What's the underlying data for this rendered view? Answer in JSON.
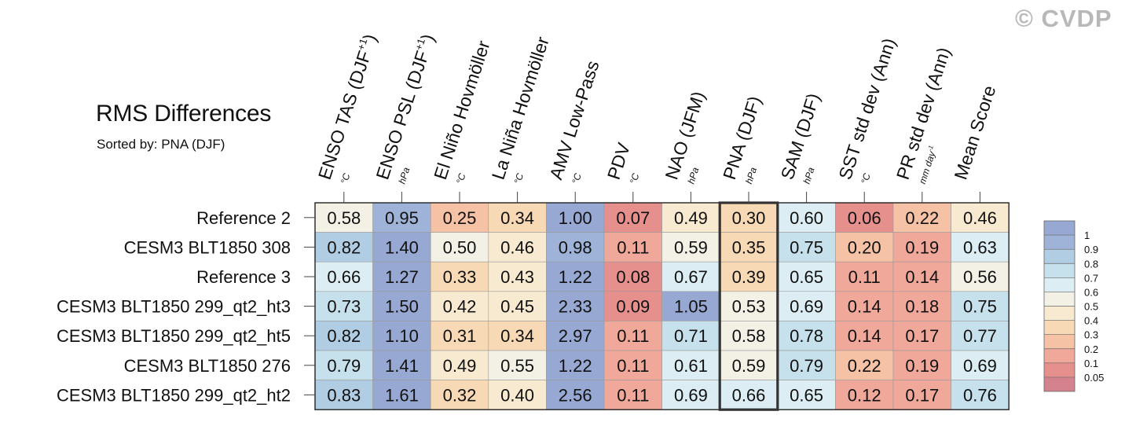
{
  "header": {
    "title": "RMS Differences",
    "subtitle": "Sorted by: PNA (DJF)",
    "watermark": "© CVDP"
  },
  "chart_data": {
    "type": "heatmap",
    "title": "RMS Differences",
    "subtitle": "Sorted by: PNA (DJF)",
    "highlighted_column": "PNA (DJF)",
    "columns": [
      {
        "label": "ENSO TAS (DJF",
        "sup": "+1",
        "tail": ")",
        "unit": "°C"
      },
      {
        "label": "ENSO PSL (DJF",
        "sup": "+1",
        "tail": ")",
        "unit": "hPa"
      },
      {
        "label": "El Niño Hovmöller",
        "sup": "",
        "tail": "",
        "unit": "°C"
      },
      {
        "label": "La Niña Hovmöller",
        "sup": "",
        "tail": "",
        "unit": "°C"
      },
      {
        "label": "AMV Low-Pass",
        "sup": "",
        "tail": "",
        "unit": "°C"
      },
      {
        "label": "PDV",
        "sup": "",
        "tail": "",
        "unit": "°C"
      },
      {
        "label": "NAO (JFM)",
        "sup": "",
        "tail": "",
        "unit": "hPa"
      },
      {
        "label": "PNA (DJF)",
        "sup": "",
        "tail": "",
        "unit": "hPa"
      },
      {
        "label": "SAM (DJF)",
        "sup": "",
        "tail": "",
        "unit": "hPa"
      },
      {
        "label": "SST std dev (Ann)",
        "sup": "",
        "tail": "",
        "unit": "°C"
      },
      {
        "label": "PR std dev (Ann)",
        "sup": "",
        "tail": "",
        "unit": "mm day",
        "unit_sup": "-1"
      },
      {
        "label": "Mean Score",
        "sup": "",
        "tail": "",
        "unit": ""
      }
    ],
    "rows": [
      "Reference 2",
      "CESM3 BLT1850 308",
      "Reference 3",
      "CESM3 BLT1850 299_qt2_ht3",
      "CESM3 BLT1850 299_qt2_ht5",
      "CESM3 BLT1850 276",
      "CESM3 BLT1850 299_qt2_ht2"
    ],
    "values": [
      [
        0.58,
        0.95,
        0.25,
        0.34,
        1.0,
        0.07,
        0.49,
        0.3,
        0.6,
        0.06,
        0.22,
        0.46
      ],
      [
        0.82,
        1.4,
        0.5,
        0.46,
        0.98,
        0.11,
        0.59,
        0.35,
        0.75,
        0.2,
        0.19,
        0.63
      ],
      [
        0.66,
        1.27,
        0.33,
        0.43,
        1.22,
        0.08,
        0.67,
        0.39,
        0.65,
        0.11,
        0.14,
        0.56
      ],
      [
        0.73,
        1.5,
        0.42,
        0.45,
        2.33,
        0.09,
        1.05,
        0.53,
        0.69,
        0.14,
        0.18,
        0.75
      ],
      [
        0.82,
        1.1,
        0.31,
        0.34,
        2.97,
        0.11,
        0.71,
        0.58,
        0.78,
        0.14,
        0.17,
        0.77
      ],
      [
        0.79,
        1.41,
        0.49,
        0.55,
        1.22,
        0.11,
        0.61,
        0.59,
        0.79,
        0.22,
        0.19,
        0.69
      ],
      [
        0.83,
        1.61,
        0.32,
        0.4,
        2.56,
        0.11,
        0.69,
        0.66,
        0.65,
        0.12,
        0.17,
        0.76
      ]
    ],
    "value_labels": [
      [
        "0.58",
        "0.95",
        "0.25",
        "0.34",
        "1.00",
        "0.07",
        "0.49",
        "0.30",
        "0.60",
        "0.06",
        "0.22",
        "0.46"
      ],
      [
        "0.82",
        "1.40",
        "0.50",
        "0.46",
        "0.98",
        "0.11",
        "0.59",
        "0.35",
        "0.75",
        "0.20",
        "0.19",
        "0.63"
      ],
      [
        "0.66",
        "1.27",
        "0.33",
        "0.43",
        "1.22",
        "0.08",
        "0.67",
        "0.39",
        "0.65",
        "0.11",
        "0.14",
        "0.56"
      ],
      [
        "0.73",
        "1.50",
        "0.42",
        "0.45",
        "2.33",
        "0.09",
        "1.05",
        "0.53",
        "0.69",
        "0.14",
        "0.18",
        "0.75"
      ],
      [
        "0.82",
        "1.10",
        "0.31",
        "0.34",
        "2.97",
        "0.11",
        "0.71",
        "0.58",
        "0.78",
        "0.14",
        "0.17",
        "0.77"
      ],
      [
        "0.79",
        "1.41",
        "0.49",
        "0.55",
        "1.22",
        "0.11",
        "0.61",
        "0.59",
        "0.79",
        "0.22",
        "0.19",
        "0.69"
      ],
      [
        "0.83",
        "1.61",
        "0.32",
        "0.40",
        "2.56",
        "0.11",
        "0.69",
        "0.66",
        "0.65",
        "0.12",
        "0.17",
        "0.76"
      ]
    ],
    "colorbar": {
      "levels": [
        0.05,
        0.1,
        0.2,
        0.3,
        0.4,
        0.5,
        0.6,
        0.7,
        0.8,
        0.9,
        1
      ],
      "labels": [
        "0.05",
        "0.1",
        "0.2",
        "0.3",
        "0.4",
        "0.5",
        "0.6",
        "0.7",
        "0.8",
        "0.9",
        "1"
      ],
      "colors": [
        "#d5828f",
        "#e6908e",
        "#f0a89a",
        "#f6c2a5",
        "#f8d9b6",
        "#f8ead0",
        "#f3f0e6",
        "#dceef3",
        "#c6e0ec",
        "#b1cde4",
        "#9fb3d8",
        "#97a9d3"
      ],
      "placement": "right"
    }
  }
}
